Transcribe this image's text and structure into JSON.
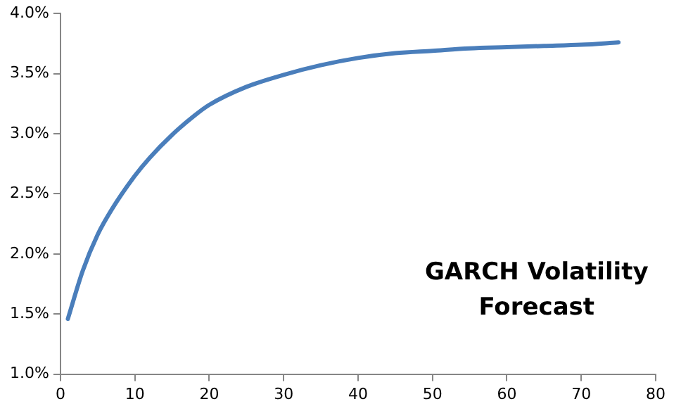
{
  "chart_data": {
    "type": "line",
    "x": [
      1,
      3,
      5,
      7,
      10,
      12,
      15,
      18,
      20,
      25,
      30,
      35,
      40,
      45,
      50,
      55,
      60,
      65,
      70,
      75
    ],
    "series": [
      {
        "color": "#4a7ebb",
        "values": [
          1.46,
          1.86,
          2.16,
          2.38,
          2.65,
          2.8,
          2.99,
          3.15,
          3.24,
          3.39,
          3.49,
          3.57,
          3.63,
          3.67,
          3.69,
          3.71,
          3.72,
          3.73,
          3.74,
          3.76
        ]
      }
    ],
    "xlim": [
      0,
      80
    ],
    "xticks": [
      0,
      10,
      20,
      30,
      40,
      50,
      60,
      70,
      80
    ],
    "ylim": [
      1,
      4
    ],
    "yticks": [
      {
        "value": 1,
        "label": "1.0%"
      },
      {
        "value": 1.5,
        "label": "1.5%"
      },
      {
        "value": 2,
        "label": "2.0%"
      },
      {
        "value": 2.5,
        "label": "2.5%"
      },
      {
        "value": 3,
        "label": "3.0%"
      },
      {
        "value": 3.5,
        "label": "3.5%"
      },
      {
        "value": 4,
        "label": "4.0%"
      }
    ],
    "grid": false,
    "legend": false,
    "marker": "none",
    "line_style": "solid",
    "annotations": [
      "GARCH Volatility\nForecast"
    ]
  }
}
